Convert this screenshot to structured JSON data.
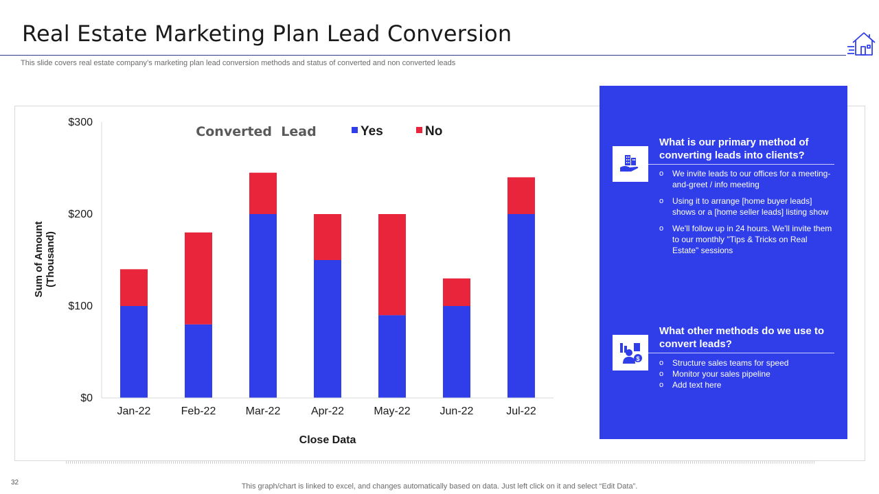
{
  "slide": {
    "title": "Real Estate Marketing Plan Lead Conversion",
    "subtitle": "This slide covers real estate company’s marketing plan lead conversion methods and status of converted and non converted leads",
    "page_number": "32",
    "footnote": "This graph/chart is linked to excel,  and changes automatically based on data. Just left click on it and select “Edit Data”."
  },
  "logo": {
    "icon": "house-icon"
  },
  "colors": {
    "yes": "#2f3ee8",
    "no": "#e8253a",
    "panel": "#2f3ee8",
    "axis": "#d9d9d9"
  },
  "chart_data": {
    "type": "bar",
    "stacked": true,
    "title": "Converted  Lead",
    "xlabel": "Close Data",
    "ylabel": [
      "Sum of Amount",
      "(Thousand)"
    ],
    "categories": [
      "Jan-22",
      "Feb-22",
      "Mar-22",
      "Apr-22",
      "May-22",
      "Jun-22",
      "Jul-22"
    ],
    "series": [
      {
        "name": "Yes",
        "values": [
          100,
          80,
          200,
          150,
          90,
          100,
          200
        ]
      },
      {
        "name": "No",
        "values": [
          40,
          100,
          45,
          50,
          110,
          30,
          40
        ]
      }
    ],
    "ylim": [
      0,
      300
    ],
    "yticks": [
      0,
      100,
      200,
      300
    ],
    "ytick_labels": [
      "$0",
      "$100",
      "$200",
      "$300"
    ],
    "legend_position": "top-right",
    "grid": false
  },
  "panel": {
    "q1": {
      "icon": "office-building-icon",
      "title": "What is our primary method of converting leads into clients?",
      "items": [
        "We invite leads to our offices for a meeting-and-greet  / info meeting",
        "Using it to arrange [home buyer leads] shows or a [home seller leads] listing show",
        "We'll follow  up in 24 hours. We'll invite them to our monthly \"Tips & Tricks on Real Estate\" sessions"
      ]
    },
    "q2": {
      "icon": "sales-person-icon",
      "title": "What other methods do we use to convert leads?",
      "items": [
        "Structure sales teams for speed",
        "Monitor your sales pipeline",
        "Add text here"
      ]
    },
    "bullet_symbol": "o"
  }
}
